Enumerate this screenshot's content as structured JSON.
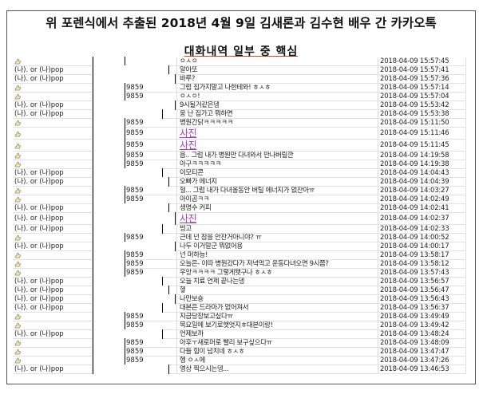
{
  "header": {
    "title": "위 포렌식에서 추출된 2018년 4월 9일 김새론과 김수현 배우 간 카카오톡",
    "subtitle": "대화내역 일부 중 핵심"
  },
  "icons": {
    "sender_other": "thumbs-up-icon"
  },
  "colors": {
    "photo_link": "#a040b0"
  },
  "rows": [
    {
      "sender": "",
      "id": "",
      "message": "ㅇㅅㅇ",
      "time": "2018-04-09 15:57:45",
      "icon": true
    },
    {
      "sender": "(나). or (나)pop",
      "id": "",
      "message": "알아또",
      "time": "2018-04-09 15:57:41"
    },
    {
      "sender": "(나). or (나)pop",
      "id": "",
      "message": "바루?",
      "time": "2018-04-09 15:57:36"
    },
    {
      "sender": "",
      "id": "9859",
      "message": "그럼 집가지말고 나한테와! ㅎㅅㅎ",
      "time": "2018-04-09 15:57:14",
      "icon": true
    },
    {
      "sender": "",
      "id": "9859",
      "message": "ㅇㅅㅇ!",
      "time": "2018-04-09 15:57:04",
      "icon": true
    },
    {
      "sender": "(나). or (나)pop",
      "id": "",
      "message": "9시될거같은뎅",
      "time": "2018-04-09 15:53:42"
    },
    {
      "sender": "(나). or (나)pop",
      "id": "",
      "message": "웅 난 집가고 뭐하면",
      "time": "2018-04-09 15:53:38"
    },
    {
      "sender": "",
      "id": "9859",
      "message": "병원간닭ㅋㅋㅋㅋㅋ",
      "time": "2018-04-09 15:11:50",
      "icon": true
    },
    {
      "sender": "",
      "id": "9859",
      "message": "사진",
      "time": "2018-04-09 15:11:46",
      "icon": true,
      "photo": true
    },
    {
      "sender": "",
      "id": "9859",
      "message": "사진",
      "time": "2018-04-09 15:11:45",
      "icon": true,
      "photo": true
    },
    {
      "sender": "",
      "id": "9859",
      "message": "음.. 그럼 내가 병원만 다녀와서 만나버릴깐",
      "time": "2018-04-09 14:19:58",
      "icon": true
    },
    {
      "sender": "",
      "id": "9859",
      "message": "아구ㅋㅋㅋㅋㅋ",
      "time": "2018-04-09 14:19:38",
      "icon": true
    },
    {
      "sender": "(나). or (나)pop",
      "id": "",
      "message": "이모티콘",
      "time": "2018-04-09 14:04:43"
    },
    {
      "sender": "(나). or (나)pop",
      "id": "",
      "message": "오빠가 에너지",
      "time": "2018-04-09 14:04:39"
    },
    {
      "sender": "",
      "id": "9859",
      "message": "헐... 그럼 내가 다녀올동안 버틸 에너지가 없잔아ㅠ",
      "time": "2018-04-09 14:03:27",
      "icon": true
    },
    {
      "sender": "",
      "id": "9859",
      "message": "아이곰ㅋㅋ",
      "time": "2018-04-09 14:02:49",
      "icon": true
    },
    {
      "sender": "(나). or (나)pop",
      "id": "",
      "message": "생명수 커피",
      "time": "2018-04-09 14:02:41"
    },
    {
      "sender": "(나). or (나)pop",
      "id": "",
      "message": "사진",
      "time": "2018-04-09 14:02:37",
      "photo": true
    },
    {
      "sender": "(나). or (나)pop",
      "id": "",
      "message": "빙고",
      "time": "2018-04-09 14:02:33"
    },
    {
      "sender": "",
      "id": "9859",
      "message": "근데 넌 잠을 안잔거아니야? ㅠ",
      "time": "2018-04-09 14:00:52",
      "icon": true
    },
    {
      "sender": "(나). or (나)pop",
      "id": "",
      "message": "나두 이거말군 뭐없어용",
      "time": "2018-04-09 14:00:17"
    },
    {
      "sender": "",
      "id": "9859",
      "message": "넌 머하능!",
      "time": "2018-04-09 13:58:17",
      "icon": true
    },
    {
      "sender": "",
      "id": "9859",
      "message": "오늘은- 이따 병원갔다가 저녁먹고 운동다녀오면 9시쯤?",
      "time": "2018-04-09 13:58:12",
      "icon": true
    },
    {
      "sender": "",
      "id": "9859",
      "message": "우앙ㅋㅋㅋㅋ 그렇게됏구나 ㅎㅅㅎ",
      "time": "2018-04-09 13:57:43",
      "icon": true
    },
    {
      "sender": "(나). or (나)pop",
      "id": "",
      "message": "오늘 치료 언제 끝나는뎅",
      "time": "2018-04-09 13:56:57"
    },
    {
      "sender": "(나). or (나)pop",
      "id": "",
      "message": "헿",
      "time": "2018-04-09 13:56:47"
    },
    {
      "sender": "(나). or (나)pop",
      "id": "",
      "message": "나만보숑",
      "time": "2018-04-09 13:56:43"
    },
    {
      "sender": "(나). or (나)pop",
      "id": "",
      "message": "대본은 드라마가 없어져서",
      "time": "2018-04-09 13:56:37"
    },
    {
      "sender": "",
      "id": "9859",
      "message": "지금당장보고싶다ㅠ",
      "time": "2018-04-09 13:49:49",
      "icon": true
    },
    {
      "sender": "",
      "id": "9859",
      "message": "목요일에 보기로햇엇지ㅎ대본이랑!",
      "time": "2018-04-09 13:49:42",
      "icon": true
    },
    {
      "sender": "(나). or (나)pop",
      "id": "",
      "message": "언제보까",
      "time": "2018-04-09 13:48:24"
    },
    {
      "sender": "",
      "id": "9859",
      "message": "아후ㅜ새로머로 빨리 보구싶으다ㅠ",
      "time": "2018-04-09 13:48:09",
      "icon": true
    },
    {
      "sender": "",
      "id": "9859",
      "message": "다들 힘이 넘치네 ㅎㅅㅎ",
      "time": "2018-04-09 13:47:47",
      "icon": true
    },
    {
      "sender": "",
      "id": "9859",
      "message": "헹 ㅇㅅ에",
      "time": "2018-04-09 13:47:26",
      "icon": true
    },
    {
      "sender": "(나). or (나)pop",
      "id": "",
      "message": "영상 찍으시는뎅...",
      "time": "2018-04-09 13:46:53"
    }
  ]
}
